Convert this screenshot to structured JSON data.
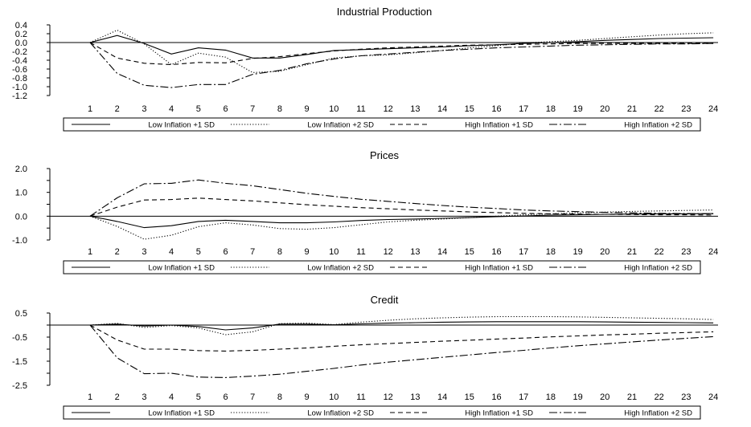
{
  "figure": {
    "background": "#ffffff",
    "line_color": "#000000"
  },
  "legend_labels": [
    "Low Inflation +1 SD",
    "Low Inflation +2 SD",
    "High Inflation +1 SD",
    "High Inflation +2 SD"
  ],
  "line_styles": [
    "solid",
    "dotted",
    "dashed",
    "dash-dot"
  ],
  "chart_data": [
    {
      "type": "line",
      "title": "Industrial Production",
      "categories": [
        "1",
        "2",
        "3",
        "4",
        "5",
        "6",
        "7",
        "8",
        "9",
        "10",
        "11",
        "12",
        "13",
        "14",
        "15",
        "16",
        "17",
        "18",
        "19",
        "20",
        "21",
        "22",
        "23",
        "24"
      ],
      "ylim": [
        -1.2,
        0.4
      ],
      "yticks": [
        "0.4",
        "0.0",
        "-0.4",
        "-0.8",
        "-1.2"
      ],
      "ytick_values": [
        0.4,
        0.0,
        -0.4,
        -0.8,
        -1.2
      ],
      "ytick_labels_shown": [
        "0.4",
        "0.0",
        "-0.4",
        "-0.8",
        "-1.2"
      ],
      "yticks_all": [
        0.4,
        0.2,
        0.0,
        -0.2,
        -0.4,
        -0.6,
        -0.8,
        -1.0,
        -1.2
      ],
      "ytick_labels_all": [
        "0.4",
        "0.2",
        "0.0",
        "-0.2",
        "-0.4",
        "-0.6",
        "-0.8",
        "-1.0",
        "-1.2"
      ],
      "zero_line": true,
      "legend": "bottom",
      "series": [
        {
          "name": "Low Inflation +1 SD",
          "style": "solid",
          "values": [
            0,
            0.16,
            -0.02,
            -0.26,
            -0.12,
            -0.17,
            -0.35,
            -0.35,
            -0.27,
            -0.18,
            -0.16,
            -0.14,
            -0.12,
            -0.1,
            -0.07,
            -0.05,
            -0.02,
            0.0,
            0.02,
            0.05,
            0.07,
            0.09,
            0.1,
            0.11
          ]
        },
        {
          "name": "Low Inflation +2 SD",
          "style": "dotted",
          "values": [
            0,
            0.28,
            -0.03,
            -0.5,
            -0.24,
            -0.33,
            -0.68,
            -0.65,
            -0.5,
            -0.35,
            -0.3,
            -0.28,
            -0.23,
            -0.18,
            -0.12,
            -0.07,
            -0.01,
            0.02,
            0.05,
            0.09,
            0.13,
            0.17,
            0.2,
            0.22
          ]
        },
        {
          "name": "High Inflation +1 SD",
          "style": "dashed",
          "values": [
            0,
            -0.35,
            -0.47,
            -0.5,
            -0.45,
            -0.46,
            -0.36,
            -0.32,
            -0.25,
            -0.19,
            -0.15,
            -0.12,
            -0.1,
            -0.08,
            -0.06,
            -0.05,
            -0.04,
            -0.03,
            -0.02,
            -0.02,
            -0.02,
            -0.02,
            -0.02,
            -0.02
          ]
        },
        {
          "name": "High Inflation +2 SD",
          "style": "dash-dot",
          "values": [
            0,
            -0.7,
            -0.97,
            -1.02,
            -0.95,
            -0.95,
            -0.72,
            -0.63,
            -0.48,
            -0.37,
            -0.3,
            -0.26,
            -0.22,
            -0.18,
            -0.15,
            -0.12,
            -0.1,
            -0.08,
            -0.06,
            -0.05,
            -0.04,
            -0.03,
            -0.03,
            -0.02
          ]
        }
      ]
    },
    {
      "type": "line",
      "title": "Prices",
      "categories": [
        "1",
        "2",
        "3",
        "4",
        "5",
        "6",
        "7",
        "8",
        "9",
        "10",
        "11",
        "12",
        "13",
        "14",
        "15",
        "16",
        "17",
        "18",
        "19",
        "20",
        "21",
        "22",
        "23",
        "24"
      ],
      "ylim": [
        -1.0,
        2.0
      ],
      "yticks_all": [
        2.0,
        1.5,
        1.0,
        0.5,
        0.0,
        -0.5,
        -1.0
      ],
      "ytick_labels_all": [
        "2.0",
        "",
        "1.0",
        "",
        "0.0",
        "",
        "-1.0"
      ],
      "zero_line": true,
      "legend": "bottom",
      "series": [
        {
          "name": "Low Inflation +1 SD",
          "style": "solid",
          "values": [
            0,
            -0.22,
            -0.48,
            -0.4,
            -0.22,
            -0.17,
            -0.22,
            -0.28,
            -0.28,
            -0.24,
            -0.18,
            -0.14,
            -0.12,
            -0.09,
            -0.06,
            -0.02,
            0.01,
            0.04,
            0.06,
            0.08,
            0.09,
            0.1,
            0.1,
            0.11
          ]
        },
        {
          "name": "Low Inflation +2 SD",
          "style": "dotted",
          "values": [
            0,
            -0.43,
            -0.97,
            -0.8,
            -0.44,
            -0.28,
            -0.37,
            -0.52,
            -0.55,
            -0.48,
            -0.36,
            -0.24,
            -0.17,
            -0.12,
            -0.06,
            0.0,
            0.06,
            0.1,
            0.14,
            0.17,
            0.2,
            0.22,
            0.24,
            0.26
          ]
        },
        {
          "name": "High Inflation +1 SD",
          "style": "dashed",
          "values": [
            0,
            0.38,
            0.68,
            0.7,
            0.76,
            0.7,
            0.64,
            0.56,
            0.48,
            0.42,
            0.36,
            0.31,
            0.26,
            0.22,
            0.18,
            0.15,
            0.12,
            0.1,
            0.09,
            0.08,
            0.07,
            0.06,
            0.06,
            0.05
          ]
        },
        {
          "name": "High Inflation +2 SD",
          "style": "dash-dot",
          "values": [
            0,
            0.77,
            1.36,
            1.38,
            1.52,
            1.38,
            1.28,
            1.12,
            0.96,
            0.83,
            0.71,
            0.62,
            0.53,
            0.45,
            0.38,
            0.32,
            0.26,
            0.22,
            0.19,
            0.16,
            0.14,
            0.12,
            0.11,
            0.1
          ]
        }
      ]
    },
    {
      "type": "line",
      "title": "Credit",
      "categories": [
        "1",
        "2",
        "3",
        "4",
        "5",
        "6",
        "7",
        "8",
        "9",
        "10",
        "11",
        "12",
        "13",
        "14",
        "15",
        "16",
        "17",
        "18",
        "19",
        "20",
        "21",
        "22",
        "23",
        "24"
      ],
      "ylim": [
        -2.5,
        0.5
      ],
      "yticks_all": [
        0.5,
        0.0,
        -0.5,
        -1.0,
        -1.5,
        -2.0,
        -2.5
      ],
      "ytick_labels_all": [
        "0.5",
        "",
        "-0.5",
        "",
        "-1.5",
        "",
        "-2.5"
      ],
      "zero_line": true,
      "legend": "bottom",
      "series": [
        {
          "name": "Low Inflation +1 SD",
          "style": "solid",
          "values": [
            0,
            0.04,
            -0.04,
            0.0,
            -0.06,
            -0.2,
            -0.12,
            0.04,
            0.04,
            0.01,
            0.05,
            0.08,
            0.1,
            0.12,
            0.13,
            0.14,
            0.14,
            0.14,
            0.14,
            0.13,
            0.12,
            0.11,
            0.1,
            0.09
          ]
        },
        {
          "name": "Low Inflation +2 SD",
          "style": "dotted",
          "values": [
            0,
            0.07,
            -0.1,
            -0.02,
            -0.12,
            -0.4,
            -0.28,
            0.06,
            0.08,
            0.02,
            0.12,
            0.2,
            0.26,
            0.3,
            0.33,
            0.35,
            0.35,
            0.35,
            0.34,
            0.32,
            0.3,
            0.28,
            0.26,
            0.23
          ]
        },
        {
          "name": "High Inflation +1 SD",
          "style": "dashed",
          "values": [
            0,
            -0.62,
            -1.0,
            -1.0,
            -1.06,
            -1.08,
            -1.05,
            -1.0,
            -0.95,
            -0.88,
            -0.82,
            -0.77,
            -0.72,
            -0.67,
            -0.63,
            -0.58,
            -0.54,
            -0.49,
            -0.45,
            -0.41,
            -0.38,
            -0.34,
            -0.31,
            -0.28
          ]
        },
        {
          "name": "High Inflation +2 SD",
          "style": "dash-dot",
          "values": [
            0,
            -1.36,
            -2.02,
            -2.0,
            -2.16,
            -2.18,
            -2.12,
            -2.04,
            -1.92,
            -1.8,
            -1.66,
            -1.54,
            -1.44,
            -1.34,
            -1.24,
            -1.14,
            -1.05,
            -0.95,
            -0.86,
            -0.78,
            -0.7,
            -0.62,
            -0.55,
            -0.48
          ]
        }
      ]
    }
  ]
}
